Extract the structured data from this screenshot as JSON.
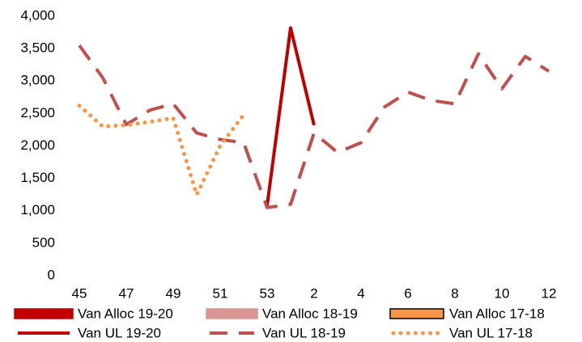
{
  "chart_data": {
    "type": "line",
    "categories": [
      "45",
      null,
      "47",
      null,
      "49",
      null,
      "51",
      null,
      "53",
      null,
      "2",
      null,
      "4",
      null,
      "6",
      null,
      "8",
      null,
      "10",
      null,
      "12"
    ],
    "ylim": [
      0,
      4000
    ],
    "yticks": [
      0,
      500,
      {
        "value": 1000,
        "label": "1,000"
      },
      {
        "value": 1500,
        "label": "1,500"
      },
      {
        "value": 2000,
        "label": "2,000"
      },
      {
        "value": 2500,
        "label": "2,500"
      },
      {
        "value": 3000,
        "label": "3,000"
      },
      {
        "value": 3500,
        "label": "3,500"
      },
      {
        "value": 4000,
        "label": "4,000"
      }
    ],
    "grid": false,
    "legend": "bottom",
    "series": [
      {
        "name": "Van Alloc 19-20",
        "color": "#c00000",
        "style": "bar",
        "values": [
          null,
          null,
          null,
          null,
          null,
          null,
          null,
          null,
          null,
          null,
          null,
          null,
          null,
          null,
          null,
          null,
          null,
          null,
          null,
          null,
          null
        ]
      },
      {
        "name": "Van Alloc 18-19",
        "color": "#d99694",
        "style": "bar",
        "values": [
          null,
          null,
          null,
          null,
          null,
          null,
          null,
          null,
          null,
          null,
          null,
          null,
          null,
          null,
          null,
          null,
          null,
          null,
          null,
          null,
          null
        ]
      },
      {
        "name": "Van Alloc 17-18",
        "color": "#f79646",
        "style": "bar",
        "values": [
          null,
          null,
          null,
          null,
          null,
          null,
          null,
          null,
          null,
          null,
          null,
          null,
          null,
          null,
          null,
          null,
          null,
          null,
          null,
          null,
          null
        ]
      },
      {
        "name": "Van UL 19-20",
        "color": "#c00000",
        "style": "solid",
        "values": [
          null,
          null,
          null,
          null,
          null,
          null,
          null,
          null,
          1080,
          3820,
          2320,
          null,
          null,
          null,
          null,
          null,
          null,
          null,
          null,
          null,
          null
        ]
      },
      {
        "name": "Van UL 18-19",
        "color": "#c0504d",
        "style": "dash",
        "values": [
          3550,
          3050,
          2330,
          2550,
          2650,
          2200,
          2100,
          2050,
          1050,
          1100,
          2200,
          1900,
          2050,
          2600,
          2830,
          2700,
          2650,
          3420,
          2880,
          3380,
          3150
        ]
      },
      {
        "name": "Van UL 17-18",
        "color": "#f79646",
        "style": "dot",
        "values": [
          2620,
          2300,
          2320,
          2370,
          2430,
          1250,
          2000,
          2480,
          null,
          null,
          null,
          null,
          null,
          null,
          null,
          null,
          null,
          null,
          null,
          null,
          null
        ]
      }
    ]
  }
}
